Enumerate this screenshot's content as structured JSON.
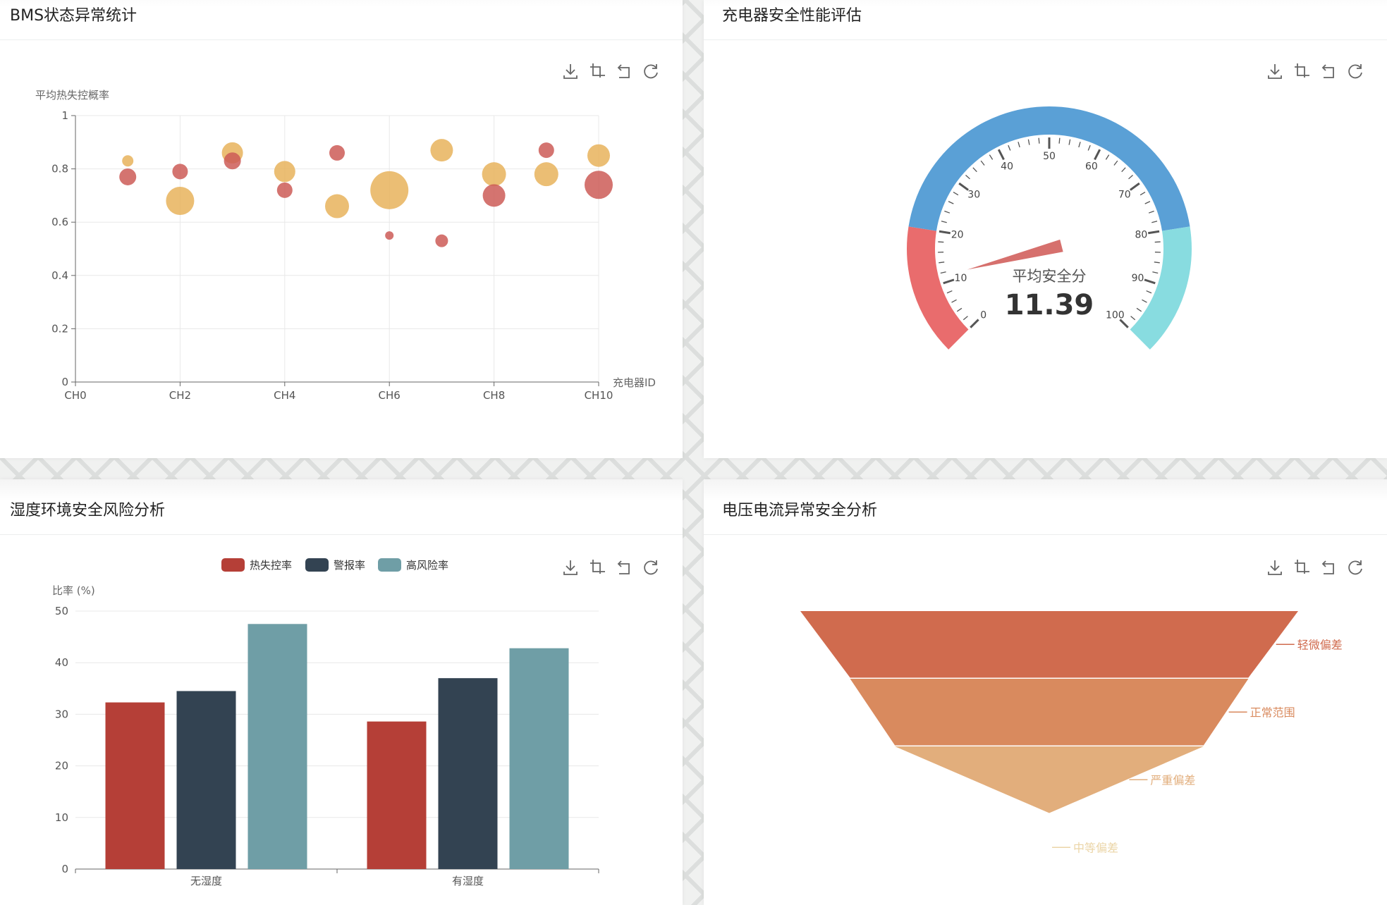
{
  "panels": {
    "bms": {
      "title": "BMS状态异常统计",
      "toolbox": [
        "download-icon",
        "crop-icon",
        "undo-icon",
        "refresh-icon"
      ]
    },
    "charger": {
      "title": "充电器安全性能评估",
      "toolbox": [
        "download-icon",
        "crop-icon",
        "undo-icon",
        "refresh-icon"
      ]
    },
    "humidity": {
      "title": "湿度环境安全风险分析",
      "toolbox": [
        "download-icon",
        "crop-icon",
        "undo-icon",
        "refresh-icon"
      ]
    },
    "voltage": {
      "title": "电压电流异常安全分析",
      "toolbox": [
        "download-icon",
        "crop-icon",
        "undo-icon",
        "refresh-icon"
      ]
    }
  },
  "chart_data": [
    {
      "id": "bms",
      "type": "scatter",
      "ylabel": "平均热失控概率",
      "xlabel": "充电器ID",
      "xlim": [
        0,
        10
      ],
      "ylim": [
        0,
        1
      ],
      "x_ticks": [
        "CH0",
        "CH2",
        "CH4",
        "CH6",
        "CH8",
        "CH10"
      ],
      "y_ticks": [
        "0",
        "0.2",
        "0.4",
        "0.6",
        "0.8",
        "1"
      ],
      "grid": true,
      "series": [
        {
          "color": "#e8b35c",
          "points": [
            {
              "x": 1,
              "y": 0.83,
              "size": 8
            },
            {
              "x": 2,
              "y": 0.68,
              "size": 20
            },
            {
              "x": 3,
              "y": 0.86,
              "size": 15
            },
            {
              "x": 4,
              "y": 0.79,
              "size": 15
            },
            {
              "x": 5,
              "y": 0.66,
              "size": 17
            },
            {
              "x": 6,
              "y": 0.72,
              "size": 27
            },
            {
              "x": 7,
              "y": 0.87,
              "size": 16
            },
            {
              "x": 8,
              "y": 0.78,
              "size": 17
            },
            {
              "x": 9,
              "y": 0.78,
              "size": 17
            },
            {
              "x": 10,
              "y": 0.85,
              "size": 16
            }
          ]
        },
        {
          "color": "#cd5c57",
          "points": [
            {
              "x": 1,
              "y": 0.77,
              "size": 12
            },
            {
              "x": 2,
              "y": 0.79,
              "size": 11
            },
            {
              "x": 3,
              "y": 0.83,
              "size": 12
            },
            {
              "x": 4,
              "y": 0.72,
              "size": 11
            },
            {
              "x": 5,
              "y": 0.86,
              "size": 11
            },
            {
              "x": 6,
              "y": 0.55,
              "size": 6
            },
            {
              "x": 7,
              "y": 0.53,
              "size": 9
            },
            {
              "x": 8,
              "y": 0.7,
              "size": 16
            },
            {
              "x": 9,
              "y": 0.87,
              "size": 11
            },
            {
              "x": 10,
              "y": 0.74,
              "size": 20
            }
          ]
        }
      ]
    },
    {
      "id": "charger",
      "type": "gauge",
      "min": 0,
      "max": 100,
      "value": 11.39,
      "value_text": "11.39",
      "label": "平均安全分",
      "tick_labels": [
        "0",
        "10",
        "20",
        "30",
        "40",
        "50",
        "60",
        "70",
        "80",
        "90",
        "100"
      ],
      "bands": [
        {
          "to": 0.2,
          "color": "#e96c6d"
        },
        {
          "to": 0.8,
          "color": "#5aa0d6"
        },
        {
          "to": 1.0,
          "color": "#88dce0"
        }
      ],
      "pointer_color": "#d6706d"
    },
    {
      "id": "humidity",
      "type": "bar",
      "ylabel": "比率 (%)",
      "categories": [
        "无湿度",
        "有湿度"
      ],
      "ylim": [
        0,
        50
      ],
      "y_ticks": [
        "0",
        "10",
        "20",
        "30",
        "40",
        "50"
      ],
      "legend_position": "top",
      "series": [
        {
          "name": "热失控率",
          "color": "#b53f37",
          "values": [
            32.3,
            28.6
          ]
        },
        {
          "name": "警报率",
          "color": "#334352",
          "values": [
            34.5,
            37.0
          ]
        },
        {
          "name": "高风险率",
          "color": "#6f9ea6",
          "values": [
            47.5,
            42.8
          ]
        }
      ]
    },
    {
      "id": "voltage",
      "type": "funnel",
      "stages": [
        {
          "name": "轻微偏差",
          "value": 100,
          "color": "#d06b4e"
        },
        {
          "name": "正常范围",
          "value": 80,
          "color": "#d98a5e"
        },
        {
          "name": "严重偏差",
          "value": 62,
          "color": "#e2ae7c"
        },
        {
          "name": "中等偏差",
          "value": 0,
          "color": "#ebd5a7"
        }
      ]
    }
  ]
}
